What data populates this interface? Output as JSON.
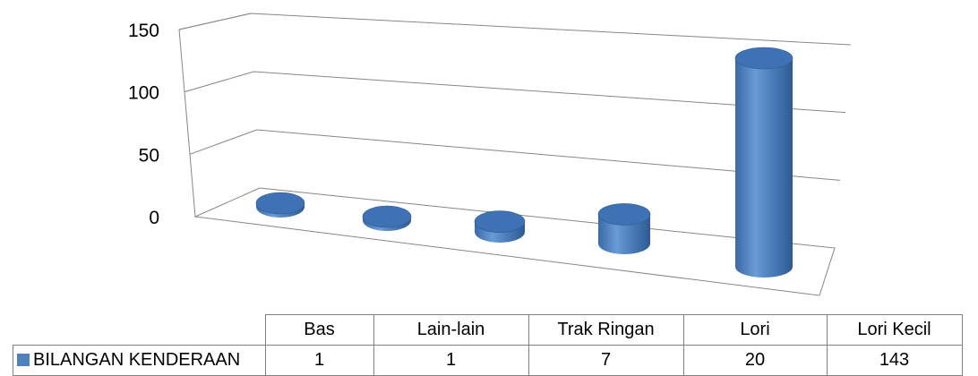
{
  "chart_data": {
    "type": "bar",
    "style": "3d-cylinder",
    "categories": [
      "Bas",
      "Lain-lain",
      "Trak Ringan",
      "Lori",
      "Lori Kecil"
    ],
    "series": [
      {
        "name": "BILANGAN KENDERAAN",
        "values": [
          1,
          1,
          7,
          20,
          143
        ],
        "color": "#4f81bd"
      }
    ],
    "yticks": [
      "0",
      "50",
      "100",
      "150"
    ],
    "ylim": [
      0,
      150
    ],
    "grid": true,
    "legend": "data-table",
    "data_table": true
  }
}
